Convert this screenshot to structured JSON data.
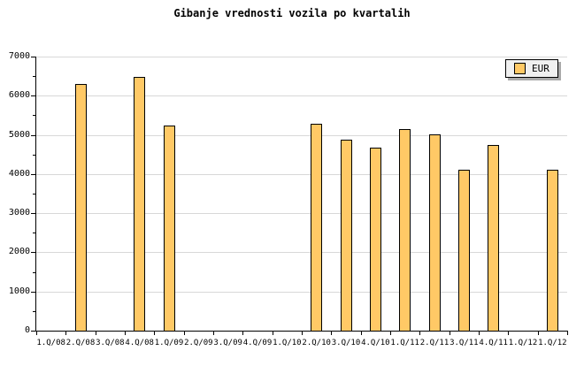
{
  "title": "Gibanje vrednosti vozila po kvartalih",
  "legend": {
    "label": "EUR",
    "swatch_icon": "eur-series-swatch"
  },
  "colors": {
    "background": "#FFFFFF",
    "bar_fill": "#FFC966",
    "bar_border": "#000000",
    "grid": "#D8D8D8",
    "axis": "#000000",
    "legend_bg": "#F0F0F0",
    "legend_shadow": "#A9A9A9",
    "text": "#000000"
  },
  "chart_data": {
    "type": "bar",
    "title": "Gibanje vrednosti vozila po kvartalih",
    "xlabel": "",
    "ylabel": "",
    "categories": [
      "1.Q/08",
      "2.Q/08",
      "3.Q/08",
      "4.Q/08",
      "1.Q/09",
      "2.Q/09",
      "3.Q/09",
      "4.Q/09",
      "1.Q/10",
      "2.Q/10",
      "3.Q/10",
      "4.Q/10",
      "1.Q/11",
      "2.Q/11",
      "3.Q/11",
      "4.Q/11",
      "1.Q/12",
      "1.Q/12"
    ],
    "series": [
      {
        "name": "EUR",
        "values": [
          null,
          6290,
          null,
          6470,
          5230,
          null,
          null,
          null,
          null,
          5290,
          4880,
          4680,
          5160,
          5020,
          4100,
          4740,
          null,
          4100
        ]
      }
    ],
    "ylim": [
      0,
      7000
    ],
    "yticks": [
      0,
      1000,
      2000,
      3000,
      4000,
      5000,
      6000,
      7000
    ],
    "minor_tick_step": 500,
    "grid": true,
    "legend_position": "top-right"
  }
}
